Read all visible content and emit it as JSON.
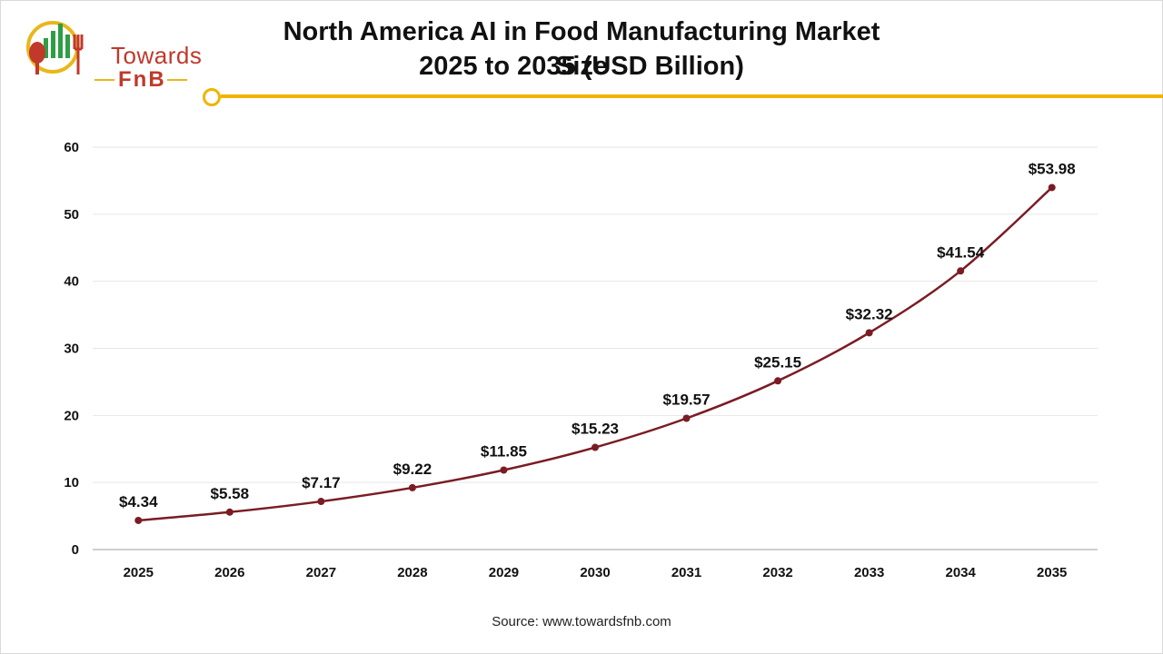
{
  "brand": {
    "word_1": "Towards",
    "word_2": "FnB",
    "colors": {
      "red": "#c0392b",
      "yellow": "#e8b71a",
      "green": "#2e9e44"
    }
  },
  "header": {
    "title_line_1": "North America AI in Food Manufacturing Market Size",
    "title_line_2": "2025 to 2035 (USD Billion)",
    "rule_color": "#f0b400"
  },
  "footer": {
    "source": "Source: www.towardsfnb.com"
  },
  "chart_data": {
    "type": "line",
    "title": "North America AI in Food Manufacturing Market Size 2025 to 2035 (USD Billion)",
    "x": [
      "2025",
      "2026",
      "2027",
      "2028",
      "2029",
      "2030",
      "2031",
      "2032",
      "2033",
      "2034",
      "2035"
    ],
    "series": [
      {
        "values": [
          4.34,
          5.58,
          7.17,
          9.22,
          11.85,
          15.23,
          19.57,
          25.15,
          32.32,
          41.54,
          53.98
        ],
        "labels": [
          "$4.34",
          "$5.58",
          "$7.17",
          "$9.22",
          "$11.85",
          "$15.23",
          "$19.57",
          "$25.15",
          "$32.32",
          "$41.54",
          "$53.98"
        ],
        "color": "#7a1c24"
      }
    ],
    "ylim": [
      0,
      60
    ],
    "yticks": [
      "0",
      "10",
      "20",
      "30",
      "40",
      "50",
      "60"
    ],
    "grid": true,
    "xlabel": "",
    "ylabel": ""
  }
}
